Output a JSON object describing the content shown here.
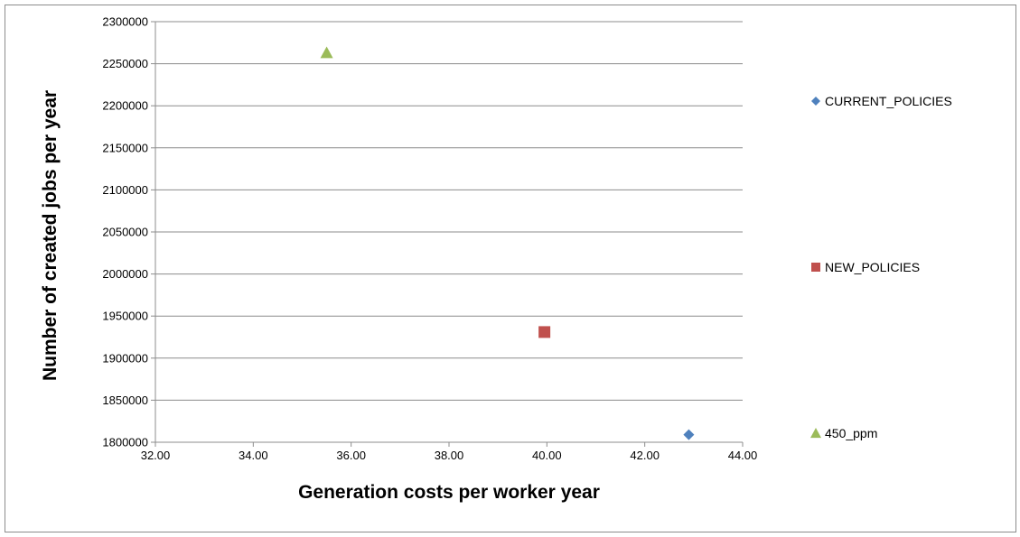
{
  "chart_data": {
    "type": "scatter",
    "xlabel": "Generation costs per worker year",
    "ylabel": "Number of created jobs  per year",
    "xlim": [
      32.0,
      44.0
    ],
    "ylim": [
      1800000,
      2300000
    ],
    "x_ticks": [
      "32.00",
      "34.00",
      "36.00",
      "38.00",
      "40.00",
      "42.00",
      "44.00"
    ],
    "y_ticks": [
      "1800000",
      "1850000",
      "1900000",
      "1950000",
      "2000000",
      "2050000",
      "2100000",
      "2150000",
      "2200000",
      "2250000",
      "2300000"
    ],
    "grid": "horizontal",
    "legend_position": "right",
    "series": [
      {
        "name": "CURRENT_POLICIES",
        "marker": "diamond",
        "color": "#4f81bd",
        "points": [
          {
            "x": 42.9,
            "y": 1809000
          }
        ]
      },
      {
        "name": "NEW_POLICIES",
        "marker": "square",
        "color": "#c0504d",
        "points": [
          {
            "x": 39.95,
            "y": 1931000
          }
        ]
      },
      {
        "name": "450_ppm",
        "marker": "triangle",
        "color": "#9bbb59",
        "points": [
          {
            "x": 35.5,
            "y": 2263000
          }
        ]
      }
    ]
  }
}
